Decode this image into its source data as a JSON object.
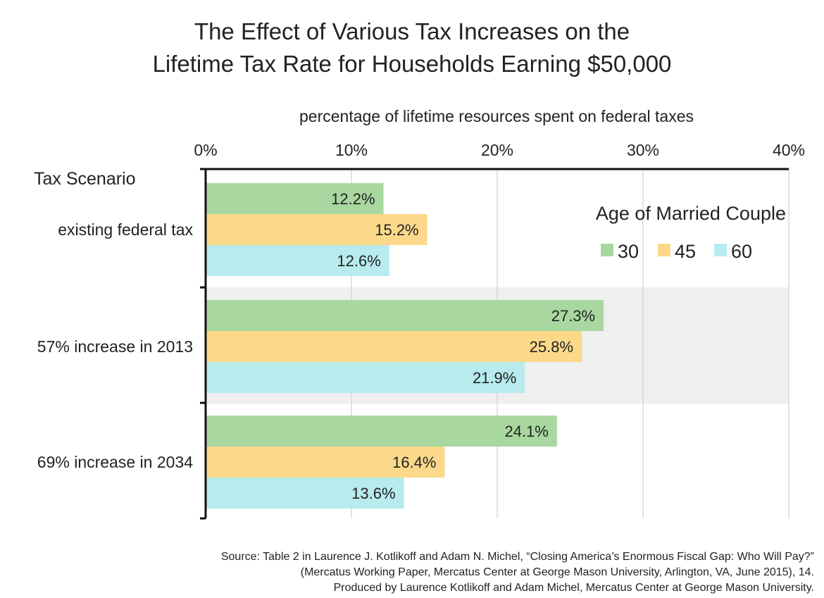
{
  "title": {
    "line1": "The Effect of Various Tax Increases on the",
    "line2_prefix": "Lifetime Tax Rate for Households Earning ",
    "line2_amount": "$50,000"
  },
  "source": {
    "line1": "Source: Table 2 in Laurence J. Kotlikoff and Adam N. Michel, “Closing America’s Enormous Fiscal Gap: Who Will Pay?”",
    "line2": "(Mercatus Working Paper, Mercatus Center at George Mason University, Arlington, VA, June 2015), 14.",
    "line3": "Produced by Laurence Kotlikoff and Adam Michel, Mercatus Center at George Mason University."
  },
  "chart_data": {
    "type": "bar",
    "orientation": "horizontal",
    "xlabel": "percentage of lifetime resources spent on federal taxes",
    "ylabel": "Tax Scenario",
    "xlim": [
      0,
      40
    ],
    "xticks": [
      "0%",
      "10%",
      "20%",
      "30%",
      "40%"
    ],
    "tick_values": [
      0,
      10,
      20,
      30,
      40
    ],
    "categories": [
      "existing federal tax",
      "57% increase in 2013",
      "69% increase in 2034"
    ],
    "legend_title": "Age of Married Couple",
    "legend_position": "top-right",
    "grid": true,
    "highlighted_category": "57% increase in 2013",
    "series": [
      {
        "name": "30",
        "color": "#a8d8a0",
        "values": [
          12.2,
          27.3,
          24.1
        ],
        "labels": [
          "12.2%",
          "27.3%",
          "24.1%"
        ]
      },
      {
        "name": "45",
        "color": "#fcd98a",
        "values": [
          15.2,
          25.8,
          16.4
        ],
        "labels": [
          "15.2%",
          "25.8%",
          "16.4%"
        ]
      },
      {
        "name": "60",
        "color": "#b7ebee",
        "values": [
          12.6,
          21.9,
          13.6
        ],
        "labels": [
          "12.6%",
          "21.9%",
          "13.6%"
        ]
      }
    ]
  }
}
